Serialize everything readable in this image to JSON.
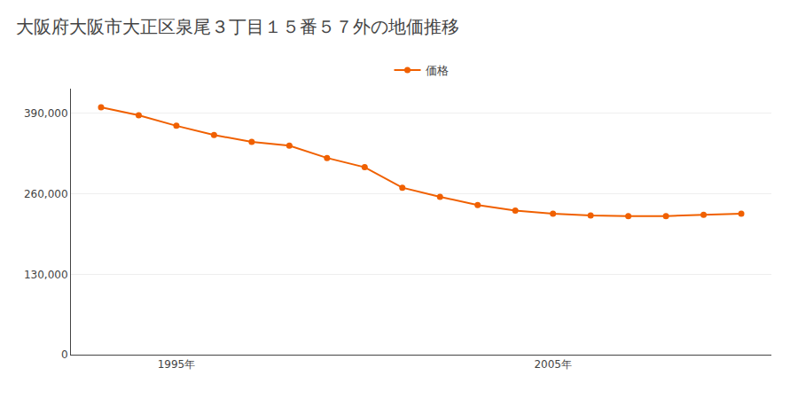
{
  "chart_data": {
    "type": "line",
    "title": "大阪府大阪市大正区泉尾３丁目１５番５７外の地価推移",
    "x": [
      1993,
      1994,
      1995,
      1996,
      1997,
      1998,
      1999,
      2000,
      2001,
      2002,
      2003,
      2004,
      2005,
      2006,
      2007,
      2008,
      2009,
      2010
    ],
    "series": [
      {
        "name": "価格",
        "color": "#f06000",
        "marker": "circle",
        "line_style": "solid",
        "values": [
          400000,
          387000,
          370000,
          355000,
          344000,
          338000,
          318000,
          303000,
          270000,
          255000,
          242000,
          233000,
          228000,
          225000,
          224000,
          224000,
          226000,
          228000
        ]
      }
    ],
    "xlim": [
      1992.2,
      2010.8
    ],
    "xticks": [
      {
        "value": 1995,
        "label": "1995年"
      },
      {
        "value": 2005,
        "label": "2005年"
      }
    ],
    "ylim": [
      0,
      430000
    ],
    "yticks": [
      0,
      {
        "value": 130000,
        "label": "130,000"
      },
      {
        "value": 260000,
        "label": "260,000"
      },
      {
        "value": 390000,
        "label": "390,000"
      }
    ],
    "grid": true,
    "legend": "top"
  }
}
